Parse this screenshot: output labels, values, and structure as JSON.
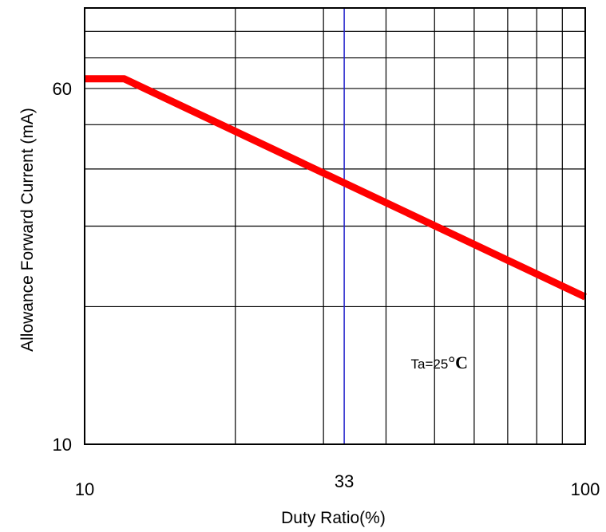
{
  "chart_data": {
    "type": "line",
    "title": "",
    "xlabel": "Duty Ratio(%)",
    "ylabel": "Allowance Forward Current (mA)",
    "x_scale": "log",
    "y_scale": "log",
    "xlim": [
      10,
      100
    ],
    "ylim": [
      10,
      90
    ],
    "grid": true,
    "x_ticks": [
      {
        "value": 10,
        "label": "10"
      },
      {
        "value": 33,
        "label": "33"
      },
      {
        "value": 100,
        "label": "100"
      }
    ],
    "y_ticks": [
      {
        "value": 10,
        "label": "10"
      },
      {
        "value": 60,
        "label": "60"
      }
    ],
    "x_gridlines": [
      10,
      20,
      30,
      40,
      50,
      60,
      70,
      80,
      90,
      100
    ],
    "y_gridlines": [
      10,
      20,
      30,
      40,
      50,
      60,
      70,
      80,
      90
    ],
    "marker_line": {
      "x": 33,
      "color": "#2222cc"
    },
    "series": [
      {
        "color": "#ff0000",
        "x": [
          10,
          12,
          100
        ],
        "y": [
          63,
          63,
          21
        ]
      }
    ],
    "annotations": [
      {
        "text": "Ta=25",
        "unit": "°C",
        "x": 46,
        "y": 15
      }
    ]
  }
}
